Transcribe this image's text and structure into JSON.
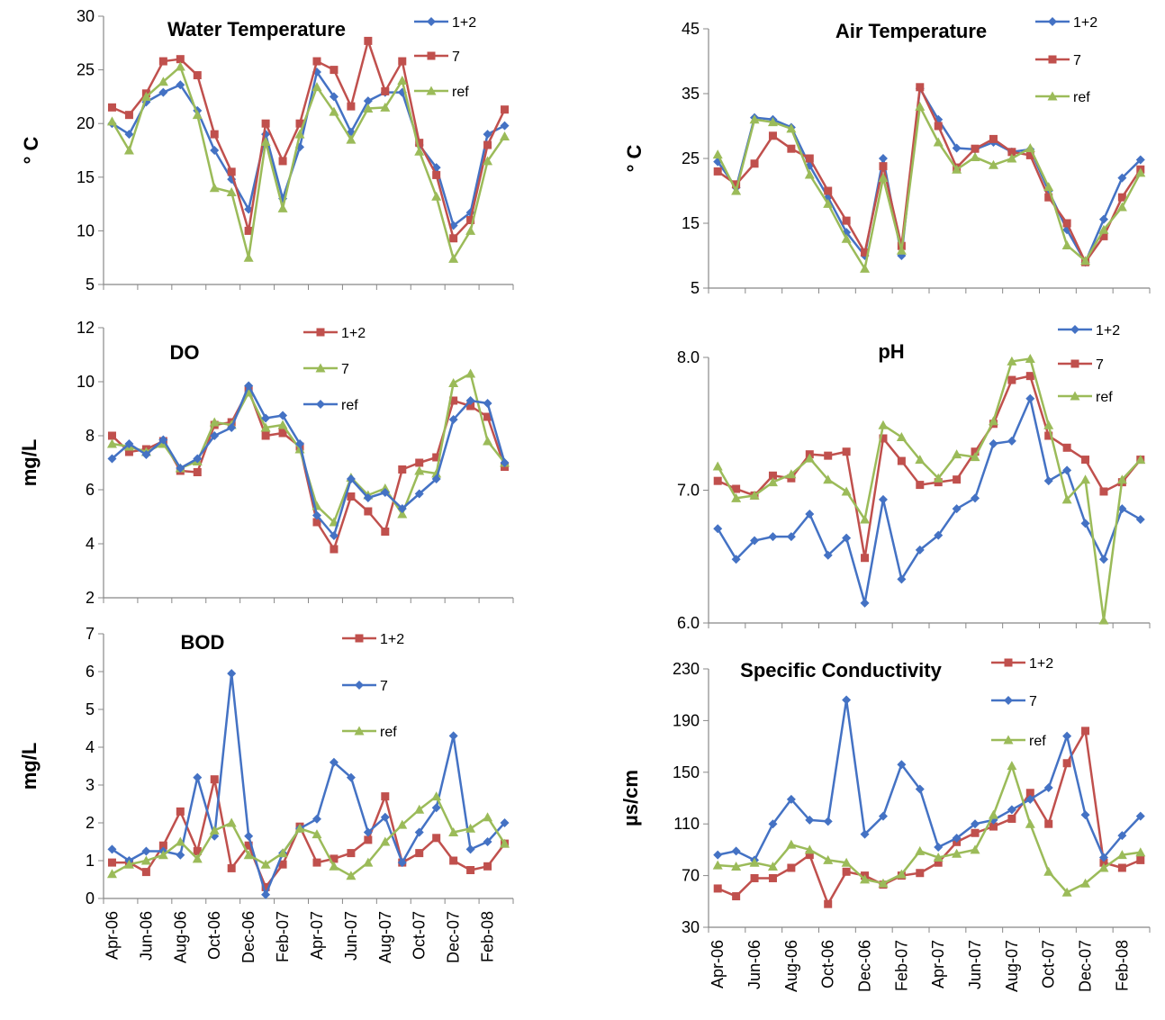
{
  "colors": {
    "blue": "#4472C4",
    "red": "#C0504D",
    "green": "#9BBB59"
  },
  "chart_data": [
    {
      "type": "line",
      "title": "Water Temperature",
      "ylabel": "° C",
      "ylim": [
        5,
        30
      ],
      "yticks": [
        "5",
        "10",
        "15",
        "20",
        "25",
        "30"
      ],
      "grid": false,
      "legend": "top-right",
      "series": [
        {
          "name": "1+2",
          "color": "blue",
          "marker": "diamond",
          "values": [
            20,
            19,
            22,
            22.9,
            23.6,
            21.2,
            17.5,
            14.8,
            12,
            19,
            13,
            17.8,
            24.8,
            22.5,
            19.2,
            22.1,
            22.9,
            22.9,
            18,
            15.9,
            10.5,
            11.7,
            19,
            19.8
          ]
        },
        {
          "name": "7",
          "color": "red",
          "marker": "square",
          "values": [
            21.5,
            20.8,
            22.8,
            25.8,
            26,
            24.5,
            19,
            15.5,
            10,
            20,
            16.5,
            20,
            25.8,
            25,
            21.6,
            27.7,
            23,
            25.8,
            18.2,
            15.2,
            9.3,
            11,
            18,
            21.3
          ]
        },
        {
          "name": "ref",
          "color": "green",
          "marker": "triangle",
          "values": [
            20.2,
            17.5,
            22.5,
            23.9,
            25.3,
            20.8,
            14,
            13.6,
            7.5,
            18.3,
            12.1,
            19,
            23.4,
            21.1,
            18.5,
            21.4,
            21.5,
            24,
            17.4,
            13.2,
            7.4,
            10,
            16.5,
            18.8
          ]
        }
      ]
    },
    {
      "type": "line",
      "title": "Air Temperature",
      "ylabel": "° C",
      "ylim": [
        5,
        45
      ],
      "yticks": [
        "5",
        "15",
        "25",
        "35",
        "45"
      ],
      "grid": false,
      "legend": "top-right",
      "series": [
        {
          "name": "1+2",
          "color": "blue",
          "marker": "diamond",
          "values": [
            24.5,
            20.5,
            31.3,
            31,
            29.8,
            23.9,
            19,
            13.6,
            10,
            25,
            10,
            35.8,
            31,
            26.6,
            26.4,
            27.5,
            26,
            26.4,
            20,
            14,
            9,
            15.6,
            22,
            24.8
          ]
        },
        {
          "name": "7",
          "color": "red",
          "marker": "square",
          "values": [
            23,
            21,
            24.2,
            28.5,
            26.5,
            25,
            20,
            15.4,
            10.5,
            23.8,
            11.5,
            36,
            30,
            23.6,
            26.5,
            28,
            26,
            25.5,
            19,
            15,
            9,
            13,
            19,
            23.3
          ]
        },
        {
          "name": "ref",
          "color": "green",
          "marker": "triangle",
          "values": [
            25.6,
            20,
            31,
            30.6,
            29.6,
            22.5,
            18,
            12.6,
            8,
            22,
            10.8,
            33,
            27.5,
            23.3,
            25.2,
            24,
            25,
            26.6,
            20.6,
            11.6,
            9.2,
            14,
            17.5,
            22.8
          ]
        }
      ]
    },
    {
      "type": "line",
      "title": "DO",
      "ylabel": "mg/L",
      "ylim": [
        2,
        12
      ],
      "yticks": [
        "2",
        "4",
        "6",
        "8",
        "10",
        "12"
      ],
      "grid": false,
      "legend": "top-right",
      "series": [
        {
          "name": "1+2",
          "color": "red",
          "marker": "square",
          "values": [
            8,
            7.4,
            7.5,
            7.8,
            6.7,
            6.65,
            8.4,
            8.5,
            9.7,
            8,
            8.1,
            7.6,
            4.8,
            3.8,
            5.75,
            5.2,
            4.45,
            6.75,
            7,
            7.2,
            9.3,
            9.1,
            8.7,
            6.85
          ]
        },
        {
          "name": "7",
          "color": "green",
          "marker": "triangle",
          "values": [
            7.7,
            7.6,
            7.4,
            7.7,
            6.8,
            7.05,
            8.5,
            8.4,
            9.6,
            8.3,
            8.4,
            7.5,
            5.4,
            4.8,
            6.45,
            5.8,
            6.05,
            5.1,
            6.7,
            6.6,
            9.95,
            10.3,
            7.8,
            7
          ]
        },
        {
          "name": "ref",
          "color": "blue",
          "marker": "diamond",
          "values": [
            7.15,
            7.7,
            7.3,
            7.85,
            6.8,
            7.15,
            8,
            8.3,
            9.85,
            8.65,
            8.75,
            7.7,
            5.05,
            4.3,
            6.4,
            5.7,
            5.9,
            5.3,
            5.85,
            6.4,
            8.6,
            9.3,
            9.2,
            7
          ]
        }
      ]
    },
    {
      "type": "line",
      "title": "pH",
      "ylabel": "",
      "ylim": [
        6,
        8
      ],
      "yticks": [
        "6.0",
        "7.0",
        "8.0"
      ],
      "grid": false,
      "legend": "top-right",
      "series": [
        {
          "name": "1+2",
          "color": "blue",
          "marker": "diamond",
          "values": [
            6.71,
            6.48,
            6.62,
            6.65,
            6.65,
            6.82,
            6.51,
            6.64,
            6.15,
            6.93,
            6.33,
            6.55,
            6.66,
            6.86,
            6.94,
            7.35,
            7.37,
            7.69,
            7.07,
            7.15,
            6.75,
            6.48,
            6.86,
            6.78
          ]
        },
        {
          "name": "7",
          "color": "red",
          "marker": "square",
          "values": [
            7.07,
            7.01,
            6.96,
            7.11,
            7.09,
            7.27,
            7.26,
            7.29,
            6.49,
            7.39,
            7.22,
            7.04,
            7.06,
            7.08,
            7.29,
            7.5,
            7.83,
            7.86,
            7.41,
            7.32,
            7.23,
            6.99,
            7.06,
            7.23
          ]
        },
        {
          "name": "ref",
          "color": "green",
          "marker": "triangle",
          "values": [
            7.18,
            6.94,
            6.96,
            7.06,
            7.12,
            7.24,
            7.08,
            6.99,
            6.78,
            7.49,
            7.4,
            7.23,
            7.09,
            7.27,
            7.25,
            7.52,
            7.97,
            7.99,
            7.49,
            6.93,
            7.08,
            6.02,
            7.08,
            7.23
          ]
        }
      ]
    },
    {
      "type": "line",
      "title": "BOD",
      "ylabel": "mg/L",
      "ylim": [
        0,
        7
      ],
      "yticks": [
        "0",
        "1",
        "2",
        "3",
        "4",
        "5",
        "6",
        "7"
      ],
      "grid": false,
      "legend": "top-right",
      "series": [
        {
          "name": "1+2",
          "color": "red",
          "marker": "square",
          "values": [
            0.95,
            0.95,
            0.7,
            1.4,
            2.3,
            1.25,
            3.15,
            0.8,
            1.4,
            0.3,
            0.9,
            1.9,
            0.95,
            1.05,
            1.2,
            1.55,
            2.7,
            0.95,
            1.2,
            1.6,
            1,
            0.75,
            0.85,
            1.45
          ]
        },
        {
          "name": "7",
          "color": "blue",
          "marker": "diamond",
          "values": [
            1.3,
            1,
            1.25,
            1.25,
            1.15,
            3.2,
            1.65,
            5.95,
            1.65,
            0.1,
            1.2,
            1.85,
            2.1,
            3.6,
            3.2,
            1.75,
            2.15,
            0.95,
            1.75,
            2.4,
            4.3,
            1.3,
            1.5,
            2
          ]
        },
        {
          "name": "ref",
          "color": "green",
          "marker": "triangle",
          "values": [
            0.65,
            0.9,
            1,
            1.15,
            1.5,
            1.05,
            1.8,
            2,
            1.15,
            0.9,
            1.2,
            1.85,
            1.7,
            0.85,
            0.6,
            0.95,
            1.5,
            1.95,
            2.35,
            2.7,
            1.75,
            1.85,
            2.15,
            1.45
          ]
        }
      ]
    },
    {
      "type": "line",
      "title": "Specific Conductivity",
      "ylabel": "µs/cm",
      "ylim": [
        30,
        230
      ],
      "yticks": [
        "30",
        "70",
        "110",
        "150",
        "190",
        "230"
      ],
      "grid": false,
      "legend": "top-right",
      "series": [
        {
          "name": "1+2",
          "color": "red",
          "marker": "square",
          "values": [
            60,
            54,
            68,
            68,
            76,
            86,
            48,
            73,
            70,
            63,
            70,
            72,
            80,
            96,
            103,
            108,
            114,
            134,
            110,
            157,
            182,
            80,
            76,
            82
          ]
        },
        {
          "name": "7",
          "color": "blue",
          "marker": "diamond",
          "values": [
            86,
            89,
            82,
            110,
            129,
            113,
            112,
            206,
            102,
            116,
            156,
            137,
            92,
            99,
            110,
            113,
            121,
            129,
            138,
            178,
            117,
            84,
            101,
            116
          ]
        },
        {
          "name": "ref",
          "color": "green",
          "marker": "triangle",
          "values": [
            78,
            77,
            80,
            77,
            94,
            90,
            82,
            80,
            67,
            64,
            71,
            89,
            84,
            87,
            90,
            117,
            155,
            110,
            73,
            57,
            64,
            76,
            86,
            88
          ]
        }
      ]
    }
  ],
  "x_tick_labels": [
    "Apr-06",
    "Jun-06",
    "Aug-06",
    "Oct-06",
    "Dec-06",
    "Feb-07",
    "Apr-07",
    "Jun-07",
    "Aug-07",
    "Oct-07",
    "Dec-07",
    "Feb-08"
  ]
}
